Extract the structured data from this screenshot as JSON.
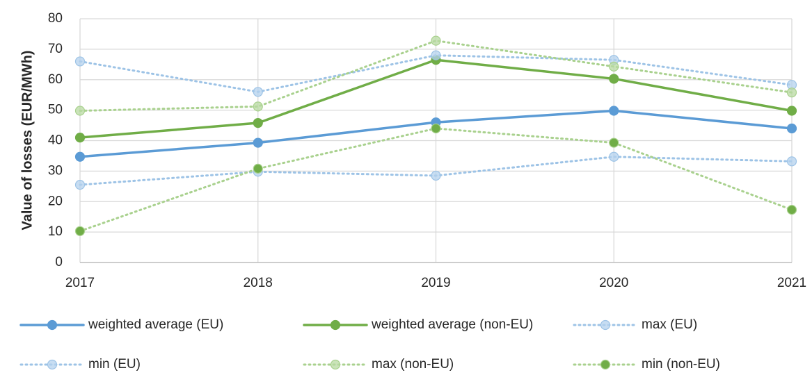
{
  "chart_data": {
    "type": "line",
    "y_label": "Value of losses (EUR/MWh)",
    "categories": [
      "2017",
      "2018",
      "2019",
      "2020",
      "2021"
    ],
    "ylim": [
      0,
      80
    ],
    "yticks": [
      0,
      10,
      20,
      30,
      40,
      50,
      60,
      70,
      80
    ],
    "grid": true,
    "legend": "bottom",
    "series": [
      {
        "name": "weighted average (EU)",
        "color": "#5b9bd5",
        "marker_color": "#5b9bd5",
        "style": "solid",
        "values": [
          34.7,
          39.3,
          46,
          49.8,
          44
        ]
      },
      {
        "name": "weighted average (non-EU)",
        "color": "#70ad47",
        "marker_color": "#70ad47",
        "style": "solid",
        "values": [
          41,
          45.8,
          66.5,
          60.3,
          49.8
        ]
      },
      {
        "name": "max (EU)",
        "color": "#9dc3e6",
        "marker_color": "#b4d1ee",
        "style": "dotted",
        "values": [
          66,
          56,
          68,
          66.5,
          58.3
        ]
      },
      {
        "name": "min (EU)",
        "color": "#9dc3e6",
        "marker_color": "#b4d1ee",
        "style": "dotted",
        "values": [
          25.5,
          29.8,
          28.5,
          34.7,
          33.2
        ]
      },
      {
        "name": "max (non-EU)",
        "color": "#a9d18e",
        "marker_color": "#b8d9a2",
        "style": "dotted",
        "values": [
          49.8,
          51.2,
          72.8,
          64.3,
          55.8
        ]
      },
      {
        "name": "min (non-EU)",
        "color": "#a9d18e",
        "marker_color": "#70ad47",
        "style": "dotted",
        "values": [
          10.3,
          30.8,
          44,
          39.3,
          17.3
        ]
      }
    ]
  }
}
